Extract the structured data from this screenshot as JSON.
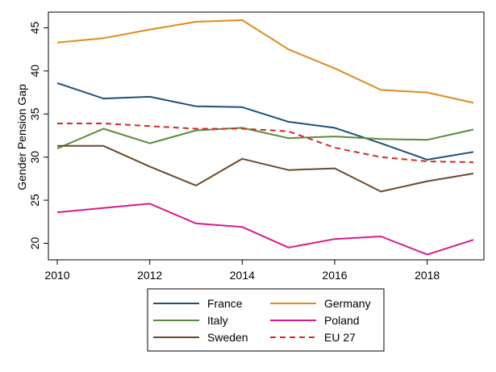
{
  "chart_data": {
    "type": "line",
    "title": "",
    "xlabel": "",
    "ylabel": "Gender Pension Gap",
    "xlim": [
      2010,
      2019
    ],
    "ylim": [
      18,
      47
    ],
    "x_ticks": [
      "2010",
      "2012",
      "2014",
      "2016",
      "2018"
    ],
    "y_ticks": [
      "20",
      "25",
      "30",
      "35",
      "40",
      "45"
    ],
    "grid": false,
    "legend_position": "bottom",
    "x": [
      2010,
      2011,
      2012,
      2013,
      2014,
      2015,
      2016,
      2017,
      2018,
      2019
    ],
    "series": [
      {
        "name": "France",
        "color": "#1f4e79",
        "dash": false,
        "values": [
          38.6,
          36.8,
          37.0,
          35.9,
          35.8,
          34.1,
          33.4,
          31.6,
          29.7,
          30.6
        ]
      },
      {
        "name": "Germany",
        "color": "#e08a1e",
        "dash": false,
        "values": [
          43.3,
          43.8,
          44.8,
          45.7,
          45.9,
          42.5,
          40.3,
          37.8,
          37.5,
          36.3
        ]
      },
      {
        "name": "Italy",
        "color": "#5a8a3a",
        "dash": false,
        "values": [
          31.0,
          33.3,
          31.6,
          33.1,
          33.4,
          32.2,
          32.4,
          32.1,
          32.0,
          33.2
        ]
      },
      {
        "name": "Poland",
        "color": "#d81b8c",
        "dash": false,
        "values": [
          23.6,
          24.1,
          24.6,
          22.3,
          21.9,
          19.5,
          20.5,
          20.8,
          18.7,
          20.4
        ]
      },
      {
        "name": "Sweden",
        "color": "#6b4a2a",
        "dash": false,
        "values": [
          31.3,
          31.3,
          28.9,
          26.7,
          29.8,
          28.5,
          28.7,
          26.0,
          27.2,
          28.1
        ]
      },
      {
        "name": "EU 27",
        "color": "#d62728",
        "dash": true,
        "values": [
          33.9,
          33.9,
          33.6,
          33.3,
          33.3,
          33.0,
          31.1,
          30.0,
          29.5,
          29.4
        ]
      }
    ]
  }
}
